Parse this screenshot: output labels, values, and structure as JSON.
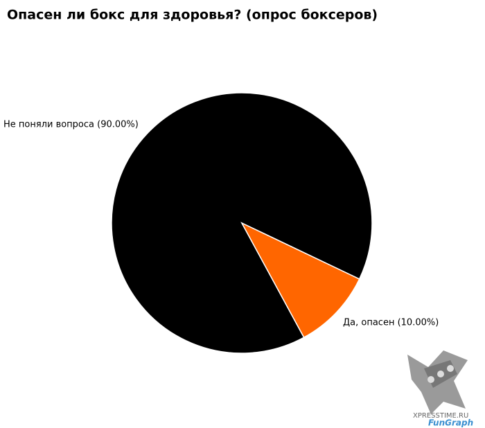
{
  "chart_data": {
    "type": "pie",
    "title": "Опасен ли бокс для здоровья? (опрос боксеров)",
    "categories": [
      "Не поняли вопроса (90.00%)",
      "Да, опасен (10.00%)"
    ],
    "values": [
      90,
      10
    ],
    "colors": [
      "#000000",
      "#ff6600"
    ]
  },
  "watermark": {
    "site": "XPRESSTIME.RU",
    "brand": "FunGraph"
  }
}
